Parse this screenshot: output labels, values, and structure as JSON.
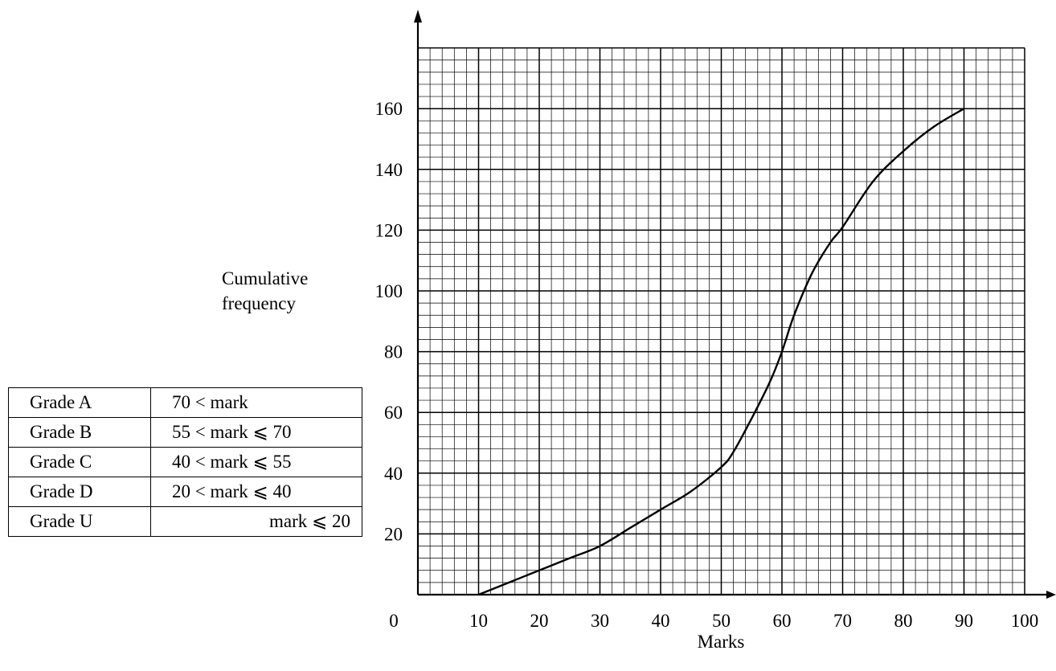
{
  "chart_data": {
    "type": "line",
    "xlabel": "Marks",
    "ylabel_lines": [
      "Cumulative",
      "frequency"
    ],
    "xlim": [
      0,
      100
    ],
    "ylim": [
      0,
      180
    ],
    "x_ticks": [
      "0",
      "10",
      "20",
      "30",
      "40",
      "50",
      "60",
      "70",
      "80",
      "90",
      "100"
    ],
    "y_ticks": [
      "20",
      "40",
      "60",
      "80",
      "100",
      "120",
      "140",
      "160"
    ],
    "grid": true,
    "series": [
      {
        "x": [
          10,
          15,
          20,
          25,
          30,
          35,
          40,
          45,
          50,
          52,
          55,
          58,
          60,
          62,
          65,
          68,
          70,
          75,
          80,
          85,
          90
        ],
        "y": [
          0,
          4,
          8,
          12,
          16,
          22,
          28,
          34,
          42,
          47,
          58,
          70,
          80,
          92,
          106,
          116,
          121,
          136,
          146,
          154,
          160
        ]
      }
    ]
  },
  "grade_table": {
    "rows": [
      {
        "grade": "Grade A",
        "range": "70 < mark"
      },
      {
        "grade": "Grade B",
        "range": "55 < mark ⩽ 70"
      },
      {
        "grade": "Grade C",
        "range": "40 < mark ⩽ 55"
      },
      {
        "grade": "Grade D",
        "range": "20 < mark ⩽ 40"
      },
      {
        "grade": "Grade U",
        "range": "mark ⩽ 20"
      }
    ]
  }
}
